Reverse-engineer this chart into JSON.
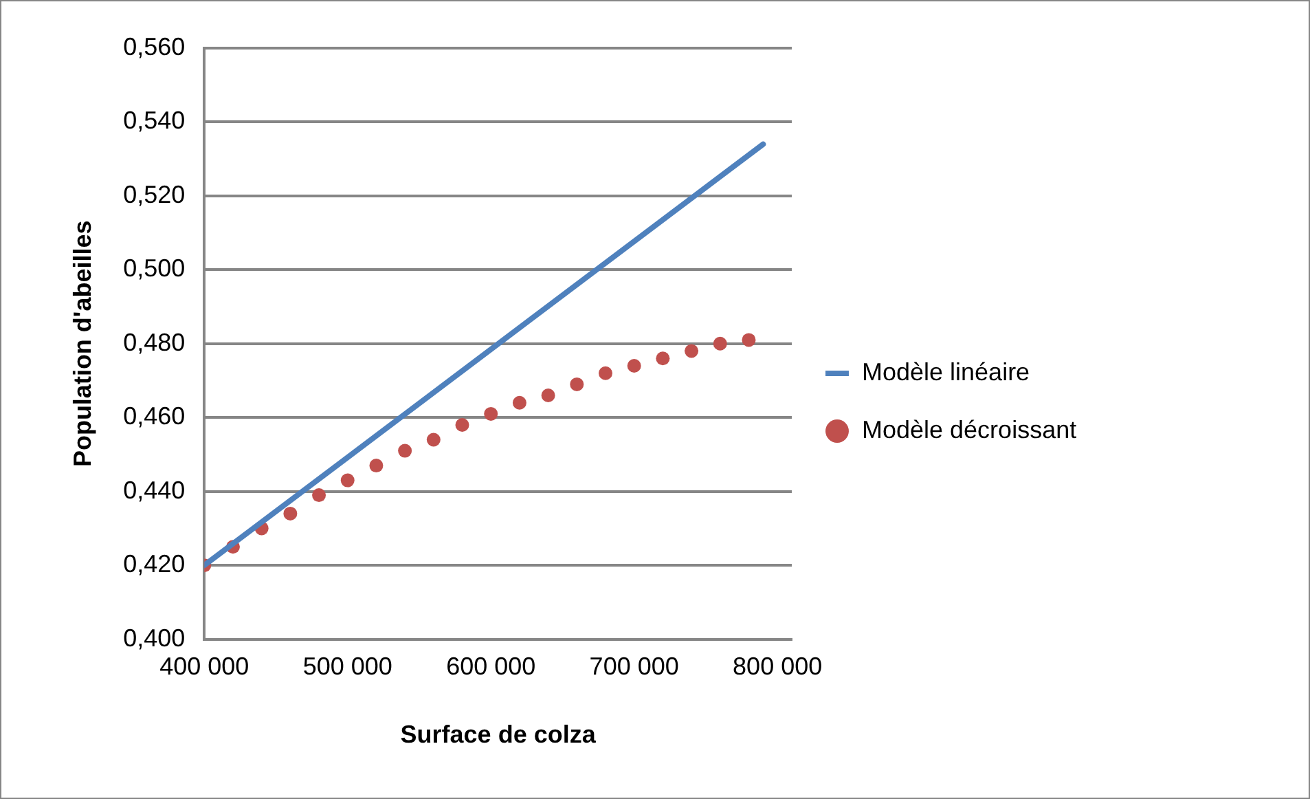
{
  "chart_data": {
    "type": "line",
    "xlabel": "Surface de colza",
    "ylabel": "Population d'abeilles",
    "xlim": [
      400000,
      810000
    ],
    "xticks": [
      {
        "value": 400000,
        "label": "400 000"
      },
      {
        "value": 500000,
        "label": "500 000"
      },
      {
        "value": 600000,
        "label": "600 000"
      },
      {
        "value": 700000,
        "label": "700 000"
      },
      {
        "value": 800000,
        "label": "800 000"
      }
    ],
    "ylim": [
      0.4,
      0.56
    ],
    "yticks": [
      {
        "value": 0.4,
        "label": "0,400"
      },
      {
        "value": 0.42,
        "label": "0,420"
      },
      {
        "value": 0.44,
        "label": "0,440"
      },
      {
        "value": 0.46,
        "label": "0,460"
      },
      {
        "value": 0.48,
        "label": "0,480"
      },
      {
        "value": 0.5,
        "label": "0,500"
      },
      {
        "value": 0.52,
        "label": "0,520"
      },
      {
        "value": 0.54,
        "label": "0,540"
      },
      {
        "value": 0.56,
        "label": "0,560"
      }
    ],
    "grid": "y",
    "legend": "right",
    "series": [
      {
        "name": "Modèle linéaire",
        "color": "#4f81bd",
        "marker": "none",
        "line_style": "solid",
        "x": [
          400000,
          790000
        ],
        "values": [
          0.42,
          0.534
        ]
      },
      {
        "name": "Modèle décroissant",
        "type": "scatter",
        "color": "#c0504d",
        "marker": "circle",
        "x": [
          400000,
          420000,
          440000,
          460000,
          480000,
          500000,
          520000,
          540000,
          560000,
          580000,
          600000,
          620000,
          640000,
          660000,
          680000,
          700000,
          720000,
          740000,
          760000,
          780000
        ],
        "values": [
          0.42,
          0.425,
          0.43,
          0.434,
          0.439,
          0.443,
          0.447,
          0.451,
          0.454,
          0.458,
          0.461,
          0.464,
          0.466,
          0.469,
          0.472,
          0.474,
          0.476,
          0.478,
          0.48,
          0.481
        ]
      }
    ]
  }
}
